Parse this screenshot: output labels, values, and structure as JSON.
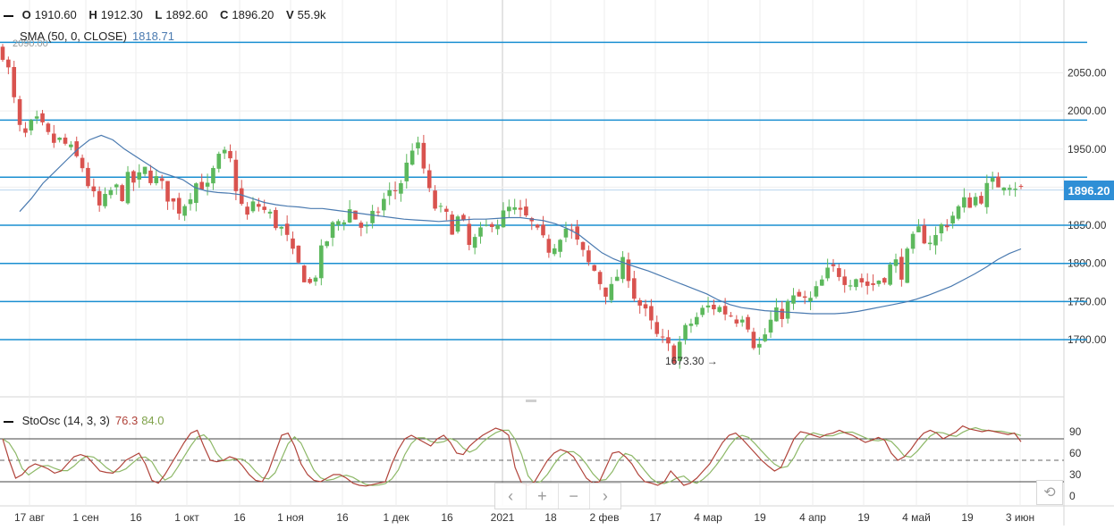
{
  "ohlc": {
    "o_label": "O",
    "o_value": "1910.60",
    "h_label": "H",
    "h_value": "1912.30",
    "l_label": "L",
    "l_value": "1892.60",
    "c_label": "C",
    "c_value": "1896.20",
    "v_label": "V",
    "v_value": "55.9k"
  },
  "sma": {
    "label": "SMA (50, 0, CLOSE)",
    "value": "1818.71"
  },
  "stoch": {
    "label": "StoOsc (14, 3, 3)",
    "k_value": "76.3",
    "d_value": "84.0"
  },
  "nav": {
    "back": "‹",
    "zoom_in": "+",
    "zoom_out": "−",
    "forward": "›",
    "reset": "⟲"
  },
  "colors": {
    "up": "#5cb85c",
    "down": "#d9534f",
    "sma": "#4a7ab0",
    "hline": "#1a8fd1",
    "price_badge": "#2f8fd6",
    "stoch_k": "#b0433a",
    "stoch_d": "#8db867"
  },
  "chart_data": [
    {
      "type": "candlestick",
      "title": "",
      "y_ticks": [
        1700,
        1750,
        1800,
        1850,
        1900,
        1950,
        2000,
        2050
      ],
      "y_tick_labels": [
        "1700.00",
        "1750.00",
        "1800.00",
        "1850.00",
        "1950.00",
        "2000.00",
        "2050.00"
      ],
      "ylim": [
        1625,
        2095
      ],
      "x_tick_labels": [
        "17 авг",
        "1 сен",
        "16",
        "1 окт",
        "16",
        "1 ноя",
        "16",
        "1 дек",
        "16",
        "2021",
        "18",
        "2 фев",
        "17",
        "4 мар",
        "19",
        "4 апр",
        "19",
        "4 май",
        "19",
        "3 июн"
      ],
      "horizontal_levels": [
        2090,
        1988,
        1913,
        1850,
        1800,
        1750,
        1700
      ],
      "last_price": "1896.20",
      "min_annotation": "1673.30",
      "top_partial_label": "2090.00",
      "close_path": [
        2080,
        2040,
        1975,
        1965,
        1985,
        1975,
        1960,
        1960,
        1955,
        1940,
        1930,
        1900,
        1870,
        1880,
        1900,
        1890,
        1910,
        1905,
        1920,
        1915,
        1900,
        1890,
        1870,
        1880,
        1900,
        1910,
        1895,
        1930,
        1940,
        1930,
        1880,
        1860,
        1880,
        1870,
        1860,
        1850,
        1830,
        1800,
        1790,
        1770,
        1800,
        1830,
        1850,
        1860,
        1870,
        1855,
        1840,
        1860,
        1880,
        1890,
        1900,
        1920,
        1960,
        1940,
        1890,
        1870,
        1860,
        1850,
        1860,
        1820,
        1830,
        1840,
        1860,
        1855,
        1870,
        1865,
        1860,
        1850,
        1830,
        1820,
        1830,
        1850,
        1840,
        1820,
        1800,
        1790,
        1770,
        1760,
        1790,
        1800,
        1760,
        1740,
        1720,
        1700,
        1690,
        1680,
        1700,
        1720,
        1730,
        1740,
        1745,
        1740,
        1735,
        1730,
        1740,
        1700,
        1690,
        1720,
        1730,
        1740,
        1750,
        1755,
        1745,
        1760,
        1780,
        1790,
        1790,
        1780,
        1785,
        1775,
        1770,
        1780,
        1790,
        1800,
        1790,
        1820,
        1840,
        1835,
        1830,
        1850,
        1860,
        1870,
        1880,
        1885,
        1890,
        1900,
        1905,
        1910,
        1908,
        1896
      ],
      "sma_path": [
        1868,
        1885,
        1905,
        1920,
        1935,
        1950,
        1962,
        1968,
        1962,
        1950,
        1940,
        1930,
        1920,
        1915,
        1910,
        1900,
        1895,
        1893,
        1892,
        1890,
        1885,
        1880,
        1877,
        1875,
        1874,
        1872,
        1872,
        1870,
        1868,
        1866,
        1864,
        1862,
        1860,
        1858,
        1857,
        1856,
        1855,
        1856,
        1857,
        1858,
        1858,
        1859,
        1860,
        1860,
        1858,
        1856,
        1852,
        1846,
        1838,
        1826,
        1814,
        1806,
        1800,
        1795,
        1790,
        1784,
        1778,
        1772,
        1766,
        1760,
        1752,
        1746,
        1742,
        1740,
        1738,
        1737,
        1736,
        1735,
        1734,
        1734,
        1734,
        1735,
        1737,
        1740,
        1743,
        1746,
        1749,
        1753,
        1758,
        1764,
        1770,
        1778,
        1786,
        1795,
        1805,
        1813,
        1819
      ],
      "series": [
        {
          "name": "SMA (50, 0, CLOSE)"
        }
      ]
    },
    {
      "type": "line",
      "title": "",
      "y_ticks": [
        0,
        30,
        60,
        90
      ],
      "ylim": [
        -10,
        110
      ],
      "levels": [
        80,
        50,
        20
      ],
      "k_path": [
        80,
        50,
        25,
        30,
        40,
        45,
        42,
        38,
        32,
        35,
        45,
        55,
        58,
        55,
        45,
        35,
        33,
        32,
        40,
        50,
        55,
        60,
        45,
        22,
        18,
        30,
        45,
        60,
        75,
        88,
        92,
        70,
        50,
        48,
        50,
        55,
        52,
        42,
        30,
        22,
        20,
        35,
        60,
        85,
        88,
        70,
        45,
        30,
        22,
        20,
        25,
        30,
        30,
        25,
        18,
        15,
        14,
        16,
        18,
        20,
        45,
        65,
        80,
        85,
        80,
        75,
        70,
        80,
        85,
        75,
        60,
        58,
        70,
        78,
        85,
        90,
        95,
        92,
        85,
        40,
        18,
        15,
        20,
        35,
        50,
        60,
        65,
        62,
        55,
        40,
        25,
        18,
        20,
        40,
        60,
        62,
        55,
        45,
        30,
        20,
        18,
        15,
        20,
        35,
        25,
        15,
        18,
        25,
        35,
        45,
        60,
        75,
        85,
        88,
        80,
        70,
        60,
        50,
        42,
        35,
        40,
        60,
        80,
        90,
        88,
        85,
        82,
        86,
        88,
        92,
        88,
        85,
        80,
        75,
        78,
        82,
        78,
        60,
        50,
        55,
        65,
        78,
        88,
        92,
        88,
        80,
        85,
        90,
        98,
        94,
        92,
        90,
        92,
        90,
        88,
        86,
        88,
        76
      ]
    }
  ]
}
